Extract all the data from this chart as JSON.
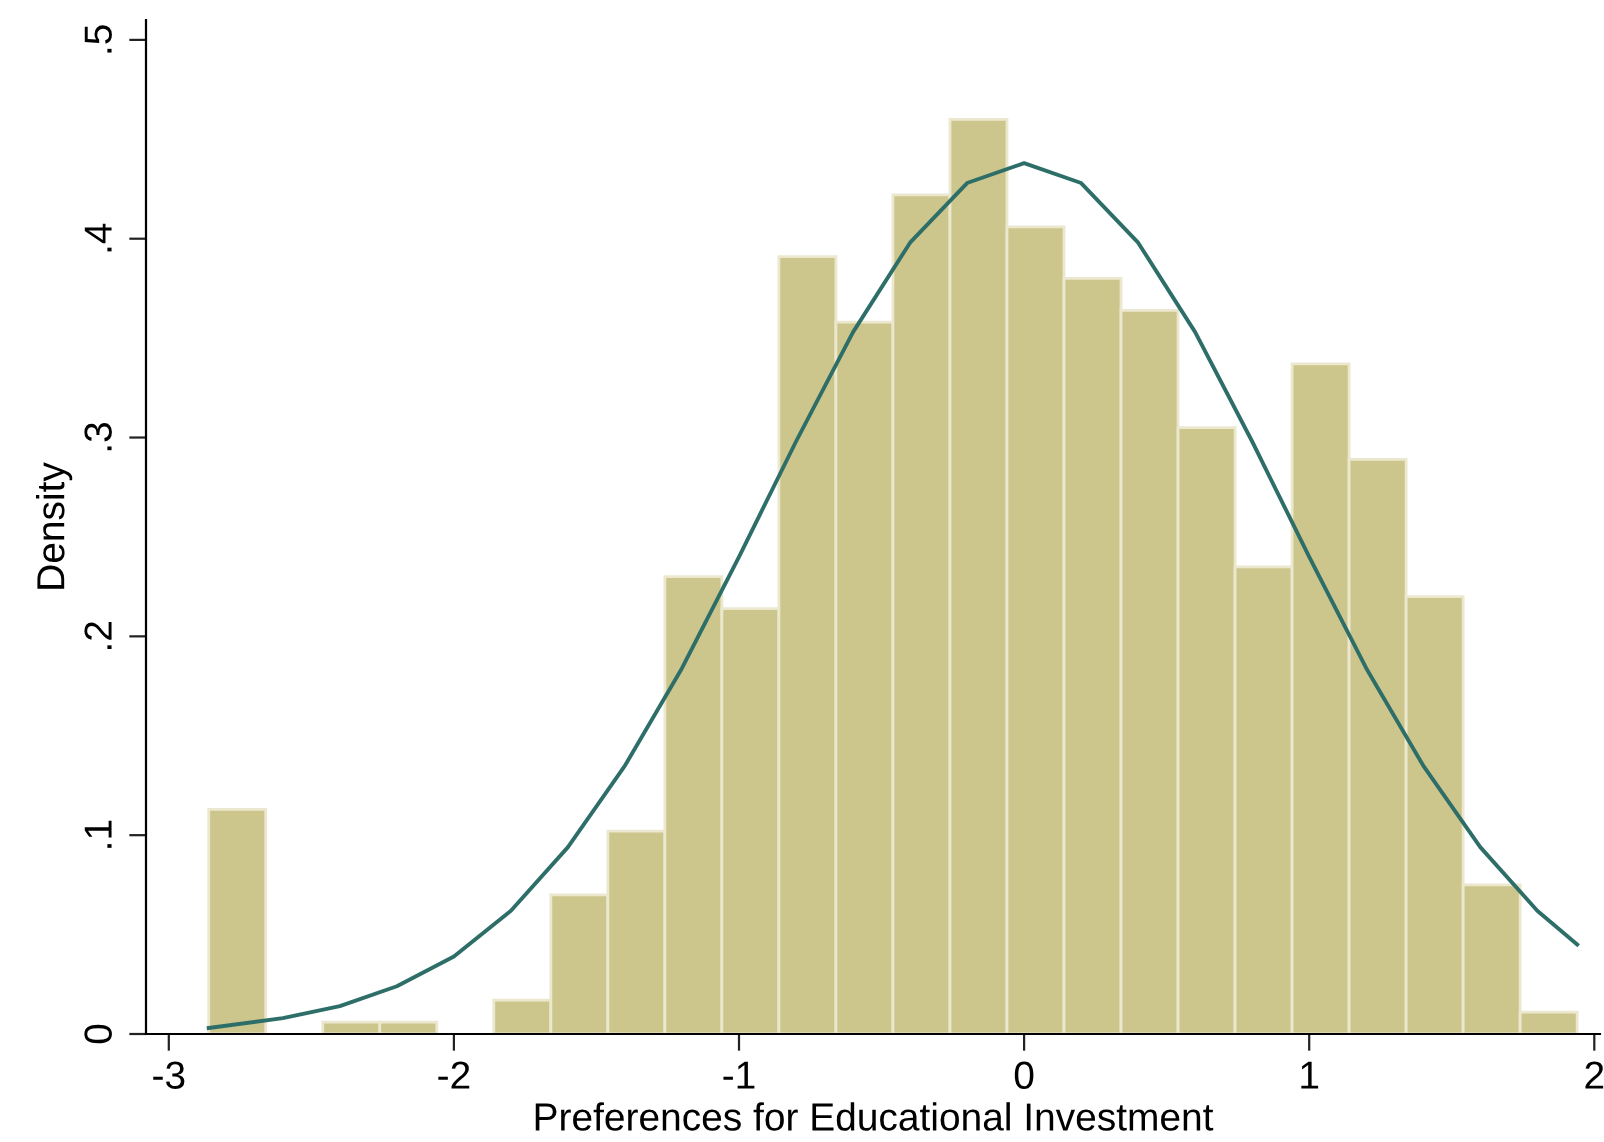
{
  "chart_data": {
    "type": "histogram",
    "xlabel": "Preferences for Educational Investment",
    "ylabel": "Density",
    "bins": [
      -2.86,
      -2.66,
      -2.46,
      -2.26,
      -2.06,
      -1.86,
      -1.66,
      -1.46,
      -1.26,
      -1.06,
      -0.86,
      -0.66,
      -0.46,
      -0.26,
      -0.06,
      0.14,
      0.34,
      0.54,
      0.74,
      0.94,
      1.14,
      1.34,
      1.54,
      1.74,
      1.94
    ],
    "values": [
      0.113,
      0,
      0.006,
      0.006,
      0,
      0.017,
      0.07,
      0.102,
      0.23,
      0.214,
      0.391,
      0.358,
      0.422,
      0.46,
      0.406,
      0.38,
      0.364,
      0.305,
      0.235,
      0.337,
      0.289,
      0.22,
      0.075,
      0.011
    ],
    "color": "#cdc68c",
    "series": [
      {
        "type": "line",
        "color": "#2e6e68",
        "x": [
          -2.86,
          -2.6,
          -2.4,
          -2.2,
          -2.0,
          -1.8,
          -1.6,
          -1.4,
          -1.2,
          -1.0,
          -0.8,
          -0.6,
          -0.4,
          -0.2,
          0,
          0.2,
          0.4,
          0.6,
          0.8,
          1.0,
          1.2,
          1.4,
          1.6,
          1.8,
          1.94
        ],
        "values": [
          0.003,
          0.008,
          0.014,
          0.024,
          0.039,
          0.062,
          0.094,
          0.135,
          0.184,
          0.24,
          0.298,
          0.353,
          0.398,
          0.428,
          0.438,
          0.428,
          0.398,
          0.353,
          0.298,
          0.24,
          0.184,
          0.135,
          0.094,
          0.062,
          0.045
        ]
      }
    ],
    "xlim": [
      -3.08,
      2.02
    ],
    "ylim": [
      0,
      0.51
    ],
    "xticks": [
      -3,
      -2,
      -1,
      0,
      1,
      2
    ],
    "yticks": [
      0,
      {
        "value": 0.1,
        "label": ".1"
      },
      {
        "value": 0.2,
        "label": ".2"
      },
      {
        "value": 0.3,
        "label": ".3"
      },
      {
        "value": 0.4,
        "label": ".4"
      },
      {
        "value": 0.5,
        "label": ".5"
      }
    ],
    "grid": false,
    "legend": false
  }
}
